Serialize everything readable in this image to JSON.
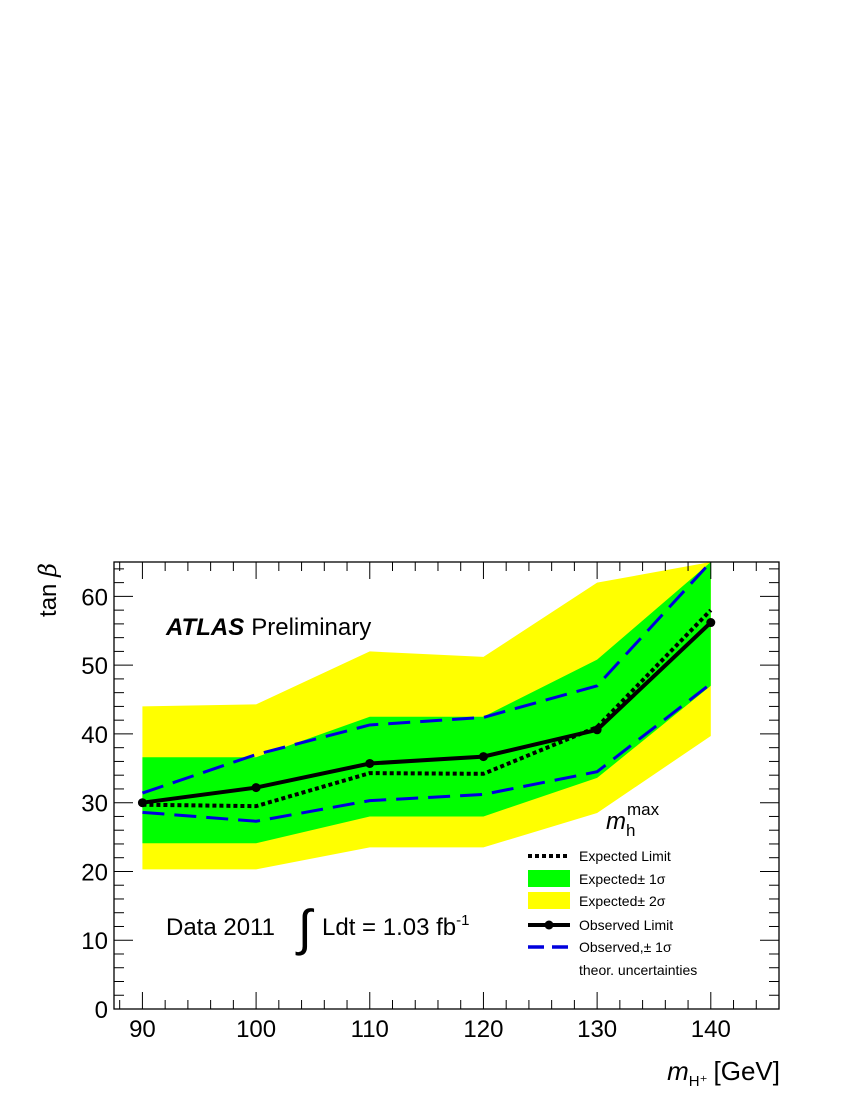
{
  "chart_data": {
    "type": "line",
    "experiment": "ATLAS",
    "status": "Preliminary",
    "dataset_label": "Data 2011",
    "lumi_label": "Ldt = 1.03 fb",
    "lumi_exponent": "-1",
    "scenario_label": {
      "main": "m",
      "sub": "h",
      "sup": "max"
    },
    "xlabel": {
      "main": "m",
      "sub": "H⁺",
      "unit": "[GeV]"
    },
    "ylabel": {
      "pre": "tan ",
      "greek": "β"
    },
    "xlim": [
      87.5,
      146
    ],
    "ylim": [
      0,
      65
    ],
    "x_ticks": [
      90,
      100,
      110,
      120,
      130,
      140
    ],
    "x_tick_labels": [
      "90",
      "100",
      "110",
      "120",
      "130",
      "140"
    ],
    "y_ticks": [
      0,
      10,
      20,
      30,
      40,
      50,
      60
    ],
    "y_tick_labels": [
      "0",
      "10",
      "20",
      "30",
      "40",
      "50",
      "60"
    ],
    "x": [
      90,
      100,
      110,
      120,
      130,
      140
    ],
    "series": [
      {
        "name": "Expected Limit",
        "style": "dotted",
        "color": "#000000",
        "values": [
          29.7,
          29.5,
          34.3,
          34.2,
          41.0,
          58.0
        ]
      },
      {
        "name": "Expected± 1σ",
        "style": "band",
        "color": "#00ff00",
        "lower": [
          24.1,
          24.1,
          28.0,
          28.0,
          33.6,
          47.0
        ],
        "upper": [
          36.6,
          36.6,
          42.5,
          42.5,
          50.8,
          65.0
        ]
      },
      {
        "name": "Expected± 2σ",
        "style": "band",
        "color": "#ffff00",
        "lower": [
          20.3,
          20.3,
          23.5,
          23.5,
          28.5,
          39.7
        ],
        "upper": [
          44.0,
          44.3,
          52.0,
          51.2,
          62.0,
          65.0
        ]
      },
      {
        "name": "Observed Limit",
        "style": "solid-markers",
        "color": "#000000",
        "values": [
          30.0,
          32.2,
          35.7,
          36.7,
          40.6,
          56.2
        ]
      },
      {
        "name": "Observed,± 1σ",
        "name_line2": "theor. uncertainties",
        "style": "dashed",
        "color": "#0000dd",
        "lower": [
          28.6,
          27.3,
          30.3,
          31.2,
          34.5,
          47.3
        ],
        "upper": [
          31.4,
          37.0,
          41.3,
          42.4,
          47.0,
          65.0
        ]
      }
    ],
    "legend_position": "bottom-right",
    "grid": false
  }
}
